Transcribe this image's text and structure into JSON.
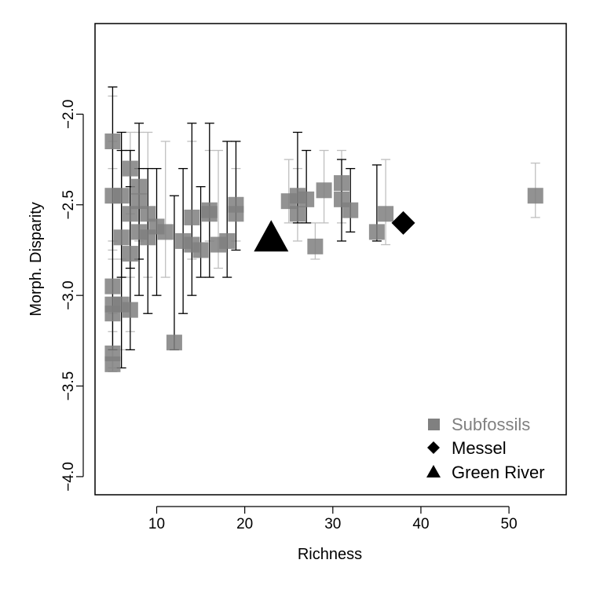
{
  "chart_data": {
    "type": "scatter",
    "xlabel": "Richness",
    "ylabel": "Morph. Disparity",
    "xlim": [
      3,
      56.5
    ],
    "ylim": [
      -4.1,
      -1.5
    ],
    "x_ticks": [
      10,
      20,
      30,
      40,
      50
    ],
    "x_tick_labels": [
      "10",
      "20",
      "30",
      "40",
      "50"
    ],
    "y_ticks": [
      -4.0,
      -3.5,
      -3.0,
      -2.5,
      -2.0
    ],
    "y_tick_labels": [
      "−4.0",
      "−3.5",
      "−3.0",
      "−2.5",
      "−2.0"
    ],
    "grid": false,
    "legend_position": "bottom-right",
    "legend": [
      {
        "label": "Subfossils",
        "marker": "square",
        "color": "#808080"
      },
      {
        "label": "Messel",
        "marker": "diamond",
        "color": "#000000"
      },
      {
        "label": "Green River",
        "marker": "triangle",
        "color": "#000000"
      }
    ],
    "series": [
      {
        "name": "Subfossils",
        "marker": "square",
        "color": "#7f7f7f",
        "points": [
          {
            "x": 5,
            "y": -2.15,
            "lo": -2.3,
            "hi": -1.9,
            "err_color": "#bfbfbf"
          },
          {
            "x": 5,
            "y": -2.45,
            "lo": -2.75,
            "hi": -2.15,
            "err_color": "#bfbfbf"
          },
          {
            "x": 5,
            "y": -2.95,
            "lo": -3.3,
            "hi": -1.85,
            "err_color": "#000000"
          },
          {
            "x": 5,
            "y": -3.05,
            "lo": -3.3,
            "hi": -2.7,
            "err_color": "#bfbfbf"
          },
          {
            "x": 5,
            "y": -3.1,
            "lo": -3.4,
            "hi": -2.8,
            "err_color": "#bfbfbf"
          },
          {
            "x": 5,
            "y": -3.32,
            "lo": -3.42,
            "hi": -3.1,
            "err_color": "#bfbfbf"
          },
          {
            "x": 5,
            "y": -3.38,
            "lo": -3.42,
            "hi": -3.2,
            "err_color": "#bfbfbf"
          },
          {
            "x": 6,
            "y": -2.45,
            "lo": -2.9,
            "hi": -2.1,
            "err_color": "#000000"
          },
          {
            "x": 6,
            "y": -2.68,
            "lo": -3.4,
            "hi": -2.2,
            "err_color": "#000000"
          },
          {
            "x": 6,
            "y": -3.05,
            "lo": -3.3,
            "hi": -2.8,
            "err_color": "#bfbfbf"
          },
          {
            "x": 7,
            "y": -2.3,
            "lo": -2.55,
            "hi": -2.1,
            "err_color": "#bfbfbf"
          },
          {
            "x": 7,
            "y": -2.55,
            "lo": -2.85,
            "hi": -2.2,
            "err_color": "#000000"
          },
          {
            "x": 7,
            "y": -2.77,
            "lo": -3.3,
            "hi": -2.4,
            "err_color": "#000000"
          },
          {
            "x": 7,
            "y": -3.08,
            "lo": -3.2,
            "hi": -2.9,
            "err_color": "#bfbfbf"
          },
          {
            "x": 8,
            "y": -2.4,
            "lo": -2.7,
            "hi": -2.1,
            "err_color": "#bfbfbf"
          },
          {
            "x": 8,
            "y": -2.48,
            "lo": -2.8,
            "hi": -2.05,
            "err_color": "#000000"
          },
          {
            "x": 8,
            "y": -2.65,
            "lo": -3.0,
            "hi": -2.3,
            "err_color": "#000000"
          },
          {
            "x": 9,
            "y": -2.55,
            "lo": -2.9,
            "hi": -2.1,
            "err_color": "#bfbfbf"
          },
          {
            "x": 9,
            "y": -2.68,
            "lo": -3.1,
            "hi": -2.3,
            "err_color": "#000000"
          },
          {
            "x": 10,
            "y": -2.62,
            "lo": -3.0,
            "hi": -2.3,
            "err_color": "#000000"
          },
          {
            "x": 11,
            "y": -2.65,
            "lo": -2.9,
            "hi": -2.15,
            "err_color": "#bfbfbf"
          },
          {
            "x": 12,
            "y": -3.26,
            "lo": -3.3,
            "hi": -2.45,
            "err_color": "#000000"
          },
          {
            "x": 13,
            "y": -2.7,
            "lo": -3.1,
            "hi": -2.3,
            "err_color": "#000000"
          },
          {
            "x": 14,
            "y": -2.57,
            "lo": -2.8,
            "hi": -2.15,
            "err_color": "#bfbfbf"
          },
          {
            "x": 14,
            "y": -2.72,
            "lo": -3.0,
            "hi": -2.05,
            "err_color": "#000000"
          },
          {
            "x": 15,
            "y": -2.75,
            "lo": -2.9,
            "hi": -2.4,
            "err_color": "#000000"
          },
          {
            "x": 16,
            "y": -2.53,
            "lo": -2.7,
            "hi": -2.2,
            "err_color": "#bfbfbf"
          },
          {
            "x": 16,
            "y": -2.55,
            "lo": -2.9,
            "hi": -2.05,
            "err_color": "#000000"
          },
          {
            "x": 17,
            "y": -2.72,
            "lo": -2.85,
            "hi": -2.2,
            "err_color": "#bfbfbf"
          },
          {
            "x": 18,
            "y": -2.7,
            "lo": -2.9,
            "hi": -2.15,
            "err_color": "#000000"
          },
          {
            "x": 19,
            "y": -2.55,
            "lo": -2.7,
            "hi": -2.3,
            "err_color": "#bfbfbf"
          },
          {
            "x": 19,
            "y": -2.5,
            "lo": -2.75,
            "hi": -2.15,
            "err_color": "#000000"
          },
          {
            "x": 25,
            "y": -2.48,
            "lo": -2.6,
            "hi": -2.25,
            "err_color": "#bfbfbf"
          },
          {
            "x": 26,
            "y": -2.45,
            "lo": -2.6,
            "hi": -2.1,
            "err_color": "#000000"
          },
          {
            "x": 26,
            "y": -2.55,
            "lo": -2.7,
            "hi": -2.3,
            "err_color": "#bfbfbf"
          },
          {
            "x": 27,
            "y": -2.47,
            "lo": -2.6,
            "hi": -2.2,
            "err_color": "#000000"
          },
          {
            "x": 28,
            "y": -2.73,
            "lo": -2.8,
            "hi": -2.6,
            "err_color": "#bfbfbf"
          },
          {
            "x": 29,
            "y": -2.42,
            "lo": -2.6,
            "hi": -2.2,
            "err_color": "#bfbfbf"
          },
          {
            "x": 31,
            "y": -2.38,
            "lo": -2.6,
            "hi": -2.2,
            "err_color": "#bfbfbf"
          },
          {
            "x": 31,
            "y": -2.47,
            "lo": -2.7,
            "hi": -2.25,
            "err_color": "#000000"
          },
          {
            "x": 32,
            "y": -2.53,
            "lo": -2.65,
            "hi": -2.3,
            "err_color": "#000000"
          },
          {
            "x": 35,
            "y": -2.65,
            "lo": -2.7,
            "hi": -2.28,
            "err_color": "#000000"
          },
          {
            "x": 36,
            "y": -2.55,
            "lo": -2.72,
            "hi": -2.25,
            "err_color": "#bfbfbf"
          },
          {
            "x": 53,
            "y": -2.45,
            "lo": -2.57,
            "hi": -2.27,
            "err_color": "#bfbfbf"
          }
        ]
      },
      {
        "name": "Messel",
        "marker": "diamond",
        "color": "#000000",
        "points": [
          {
            "x": 38,
            "y": -2.6
          }
        ]
      },
      {
        "name": "Green River",
        "marker": "triangle",
        "color": "#000000",
        "points": [
          {
            "x": 23,
            "y": -2.68
          }
        ]
      }
    ]
  }
}
